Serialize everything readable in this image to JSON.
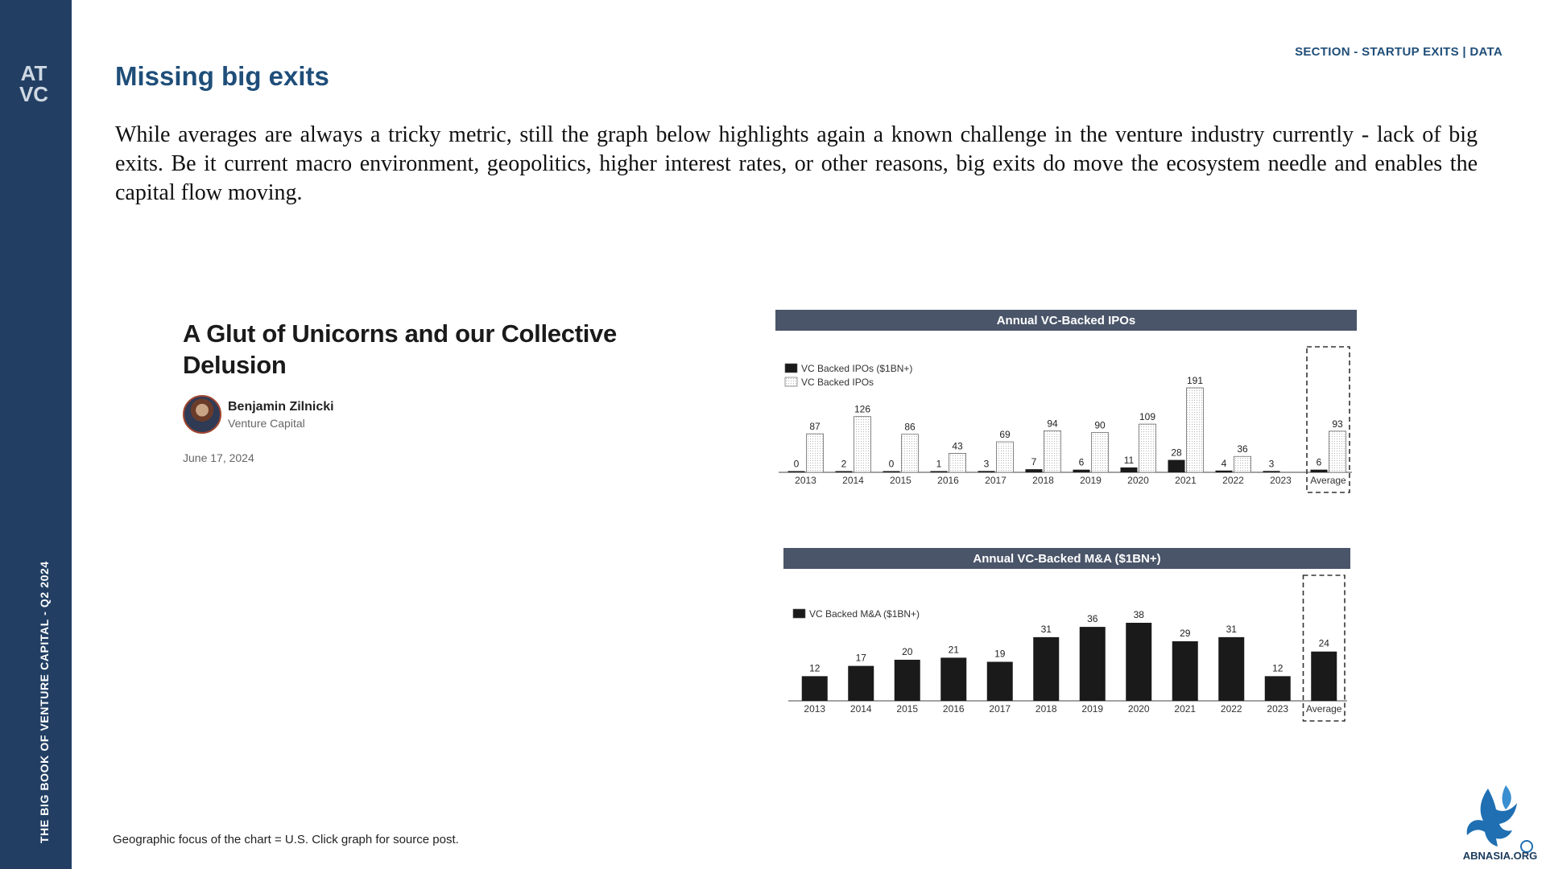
{
  "sidebar": {
    "logo_text": "AT VC",
    "vertical_text": "THE BIG BOOK OF VENTURE CAPITAL - Q2 2024"
  },
  "header": {
    "section": "SECTION - STARTUP EXITS | DATA",
    "title": "Missing big exits"
  },
  "intro": "While averages are always a tricky metric, still the graph below highlights again a known challenge in the venture industry currently - lack of big exits. Be it current macro environment, geopolitics, higher interest rates, or other reasons, big exits do move the ecosystem needle and enables the capital flow moving.",
  "article": {
    "title": "A Glut of Unicorns and our Collective Delusion",
    "author": "Benjamin Zilnicki",
    "role": "Venture Capital",
    "date": "June 17, 2024"
  },
  "footnote": "Geographic focus of the chart = U.S. Click graph for source post.",
  "brand": {
    "logo_text": "ABNASIA.ORG"
  },
  "colors": {
    "navy": "#223f63",
    "title_blue": "#1f4e79",
    "chart_header": "#4a5569",
    "bar_dark": "#1a1a1a",
    "bar_light": "#ffffff"
  },
  "chart_data": [
    {
      "type": "bar",
      "title": "Annual VC-Backed IPOs",
      "categories": [
        "2013",
        "2014",
        "2015",
        "2016",
        "2017",
        "2018",
        "2019",
        "2020",
        "2021",
        "2022",
        "2023",
        "Average"
      ],
      "series": [
        {
          "name": "VC Backed IPOs ($1BN+)",
          "values": [
            0,
            2,
            0,
            1,
            3,
            7,
            6,
            11,
            28,
            4,
            3,
            6
          ]
        },
        {
          "name": "VC Backed IPOs",
          "values": [
            87,
            126,
            86,
            43,
            69,
            94,
            90,
            109,
            191,
            36,
            null,
            93
          ]
        }
      ],
      "legend_position": "top-left",
      "highlighted_category": "Average"
    },
    {
      "type": "bar",
      "title": "Annual VC-Backed M&A ($1BN+)",
      "categories": [
        "2013",
        "2014",
        "2015",
        "2016",
        "2017",
        "2018",
        "2019",
        "2020",
        "2021",
        "2022",
        "2023",
        "Average"
      ],
      "series": [
        {
          "name": "VC Backed M&A ($1BN+)",
          "values": [
            12,
            17,
            20,
            21,
            19,
            31,
            36,
            38,
            29,
            31,
            12,
            24
          ]
        }
      ],
      "legend_position": "top-left",
      "highlighted_category": "Average"
    }
  ]
}
